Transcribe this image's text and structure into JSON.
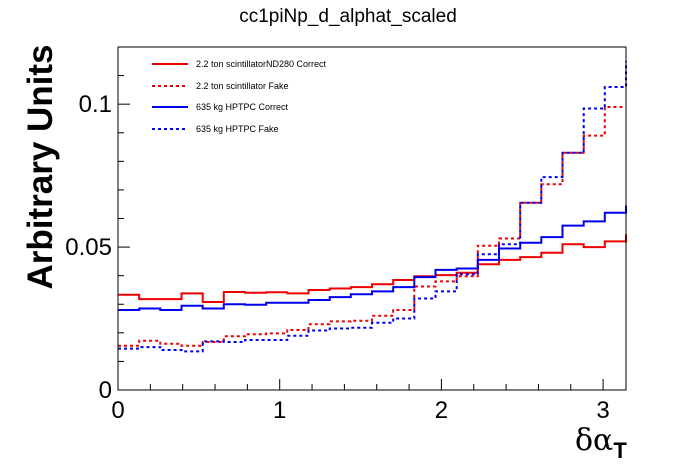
{
  "chart_data": {
    "type": "line",
    "title": "cc1piNp_d_alphat_scaled",
    "ylabel": "Arbitrary Units",
    "xlabel": "δα",
    "xlabel_sub": "T",
    "xlim": [
      0,
      3.14159
    ],
    "ylim": [
      0,
      0.12
    ],
    "xticks": [
      0,
      1,
      2,
      3
    ],
    "xtick_labels": [
      "0",
      "1",
      "2",
      "3"
    ],
    "yticks": [
      0,
      0.05,
      0.1
    ],
    "ytick_labels": [
      "0",
      "0.05",
      "0.1"
    ],
    "grid": false,
    "legend_position": "top-left",
    "bin_edges": [
      0,
      0.1309,
      0.2618,
      0.3927,
      0.5236,
      0.6545,
      0.7854,
      0.9163,
      1.0472,
      1.1781,
      1.309,
      1.4399,
      1.5708,
      1.7017,
      1.8326,
      1.9635,
      2.0944,
      2.2253,
      2.3562,
      2.4871,
      2.618,
      2.7489,
      2.8798,
      3.0107,
      3.1416
    ],
    "series": [
      {
        "name": "2.2 ton scintillatorND280 Correct",
        "color": "#ee0000",
        "style": "solid",
        "values": [
          0.0333,
          0.0318,
          0.0318,
          0.0338,
          0.0308,
          0.0343,
          0.034,
          0.0342,
          0.0338,
          0.035,
          0.0355,
          0.036,
          0.037,
          0.0385,
          0.0398,
          0.0402,
          0.041,
          0.044,
          0.0455,
          0.0465,
          0.048,
          0.051,
          0.05,
          0.052,
          0.0545
        ]
      },
      {
        "name": "2.2 ton scintillator Fake",
        "color": "#ee0000",
        "style": "dashed",
        "values": [
          0.0155,
          0.0172,
          0.0162,
          0.0155,
          0.0168,
          0.0188,
          0.0195,
          0.0198,
          0.021,
          0.023,
          0.024,
          0.0242,
          0.026,
          0.028,
          0.0362,
          0.038,
          0.0398,
          0.0505,
          0.053,
          0.0655,
          0.072,
          0.083,
          0.089,
          0.099,
          0.099
        ]
      },
      {
        "name": "635 kg HPTPC Correct",
        "color": "#0000ee",
        "style": "solid",
        "values": [
          0.028,
          0.0285,
          0.028,
          0.0295,
          0.0285,
          0.03,
          0.0298,
          0.0305,
          0.0305,
          0.0315,
          0.0325,
          0.0335,
          0.0345,
          0.036,
          0.0395,
          0.042,
          0.0425,
          0.0455,
          0.0495,
          0.0515,
          0.0535,
          0.0575,
          0.059,
          0.062,
          0.0645
        ]
      },
      {
        "name": "635 kg HPTPC Fake",
        "color": "#0000ee",
        "style": "dashed",
        "values": [
          0.0145,
          0.015,
          0.014,
          0.0135,
          0.017,
          0.0168,
          0.0175,
          0.0175,
          0.019,
          0.0208,
          0.0215,
          0.0218,
          0.0235,
          0.025,
          0.032,
          0.0345,
          0.0405,
          0.0475,
          0.051,
          0.0655,
          0.0745,
          0.083,
          0.0985,
          0.106,
          0.115
        ]
      }
    ]
  }
}
